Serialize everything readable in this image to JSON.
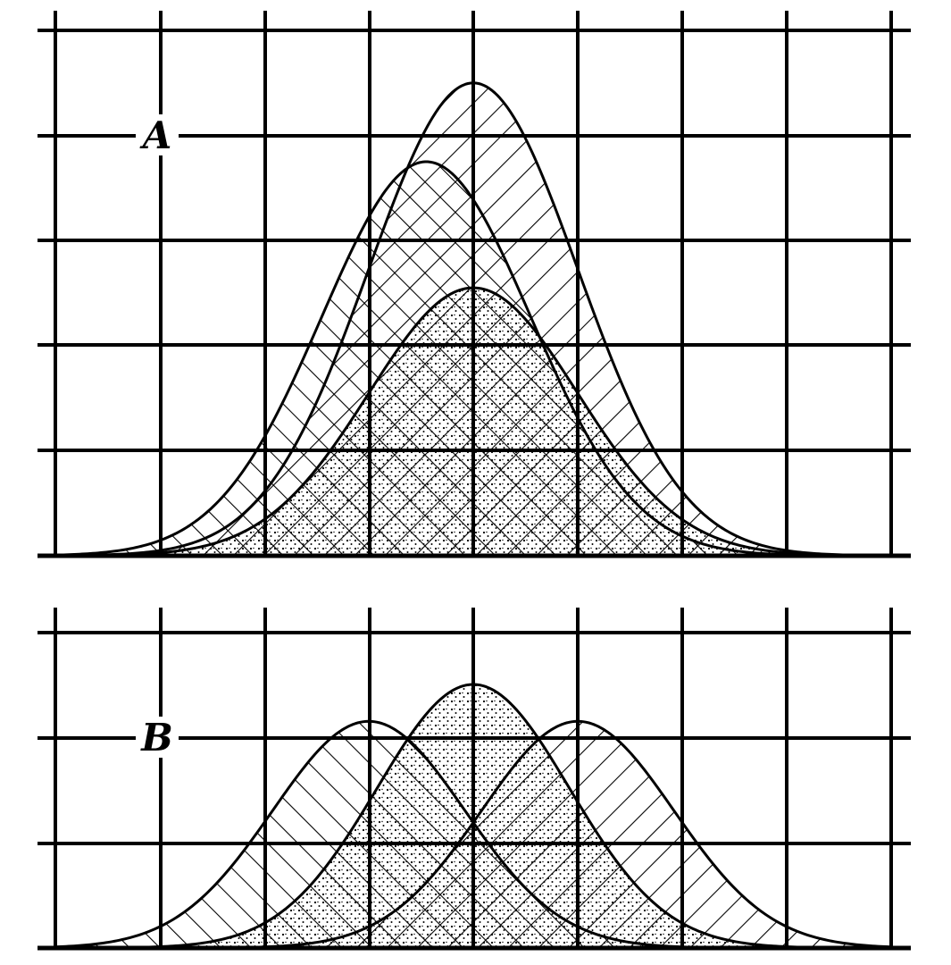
{
  "panels": [
    {
      "label": "A",
      "curves": [
        {
          "name_role": "large-peak",
          "fill": "hatch-right",
          "peak_offset": 0.0,
          "peak_height": 4.5,
          "sigma": 1.0
        },
        {
          "name_role": "left-peak",
          "fill": "hatch-left",
          "peak_offset": -0.45,
          "peak_height": 3.75,
          "sigma": 1.0
        },
        {
          "name_role": "small-peak",
          "fill": "dots",
          "peak_offset": 0.0,
          "peak_height": 2.55,
          "sigma": 1.0
        }
      ]
    },
    {
      "label": "B",
      "curves": [
        {
          "name_role": "left-peak",
          "fill": "hatch-left",
          "peak_offset": -1.0,
          "peak_height": 2.15,
          "sigma": 0.92
        },
        {
          "name_role": "right-peak",
          "fill": "hatch-right",
          "peak_offset": 1.0,
          "peak_height": 2.15,
          "sigma": 0.92
        },
        {
          "name_role": "center-peak",
          "fill": "dots",
          "peak_offset": 0.0,
          "peak_height": 2.5,
          "sigma": 0.92
        }
      ]
    }
  ],
  "colors": {
    "ink": "#000000",
    "paper": "#ffffff"
  }
}
